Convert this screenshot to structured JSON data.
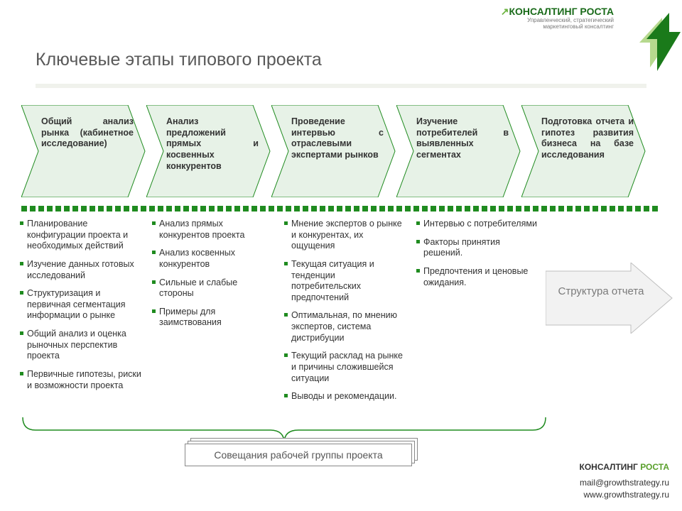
{
  "brand": {
    "title_pre": "↗ ",
    "title": "КОНСАЛТИНГ РОСТА",
    "subtitle": "Управленческий, стратегический\nмаркетинговый консалтинг"
  },
  "pageTitle": "Ключевые этапы типового проекта",
  "colors": {
    "chevron_fill": "#e7f2e7",
    "chevron_stroke": "#1f8b1f",
    "bullet": "#1f8b1f",
    "report_fill": "#f2f2f2",
    "report_stroke": "#bfbfbf",
    "rule": "#f0f2ec",
    "logo_dark": "#1a7a1a",
    "logo_light": "#b6d98e"
  },
  "chevrons": [
    "Общий анализ рынка (кабинетное исследование)",
    "Анализ предложений прямых и косвенных конкурентов",
    "Проведение интервью с отраслевыми экспертами рынков",
    "Изучение потребителей в выявленных сегментах",
    "Подготовка отчета и гипотез развития бизнеса на базе исследования"
  ],
  "columns": [
    [
      "Планирование конфигурации проекта и необходимых действий",
      "Изучение данных готовых исследований",
      "Структуризация и первичная сегментация информации о рынке",
      "Общий анализ и оценка рыночных перспектив проекта",
      "Первичные гипотезы, риски и возможности проекта"
    ],
    [
      "Анализ прямых конкурентов проекта",
      "Анализ косвенных конкурентов",
      "Сильные и слабые стороны",
      "Примеры для заимствования"
    ],
    [
      "Мнение экспертов о рынке и конкурентах, их ощущения",
      "Текущая ситуация и тенденции потребительских предпочтений",
      "Оптимальная, по мнению экспертов, система дистрибуции",
      "Текущий расклад на рынке и причины сложившейся ситуации",
      "Выводы и рекомендации."
    ],
    [
      "Интервью с потребителями",
      "Факторы принятия решений.",
      "Предпочтения и ценовые ожидания."
    ]
  ],
  "reportArrowLabel": "Структура отчета",
  "meetingBoxLabel": "Совещания рабочей группы проекта",
  "footer": {
    "brand_a": "КОНСАЛТИНГ ",
    "brand_b": "РОСТА",
    "email": "mail@growthstrategy.ru",
    "site": "www.growthstrategy.ru"
  }
}
